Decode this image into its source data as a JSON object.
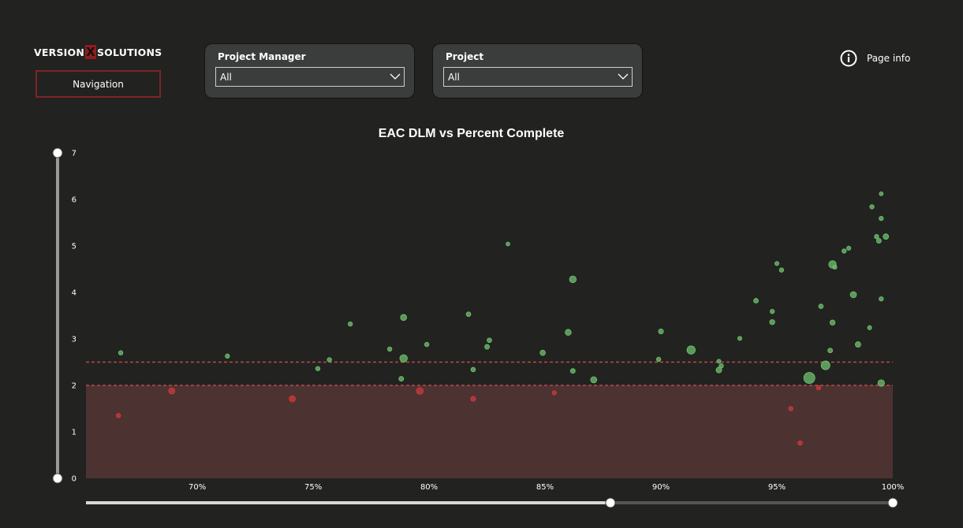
{
  "logo": {
    "left": "VERSION",
    "mark": "X",
    "right": "SOLUTIONS"
  },
  "navigation": {
    "label": "Navigation"
  },
  "filters": [
    {
      "title": "Project Manager",
      "value": "All"
    },
    {
      "title": "Project",
      "value": "All"
    }
  ],
  "page_info": {
    "label": "Page info"
  },
  "colors": {
    "above": "#6fc16f",
    "below": "#cf3a3a",
    "band": "#4d3232",
    "line": "#b84a4a"
  },
  "chart_data": {
    "type": "scatter",
    "title": "EAC DLM vs Percent Complete",
    "xlabel": "",
    "ylabel": "",
    "x_tick_labels": [
      "70%",
      "75%",
      "80%",
      "85%",
      "90%",
      "95%",
      "100%"
    ],
    "x_ticks": [
      70,
      75,
      80,
      85,
      90,
      95,
      100
    ],
    "y_ticks": [
      0,
      1,
      2,
      3,
      4,
      5,
      6,
      7
    ],
    "xlim": [
      65.2,
      100
    ],
    "ylim": [
      0,
      7
    ],
    "reference_lines": [
      2.0,
      2.5
    ],
    "threshold": 2.0,
    "shaded_range": [
      0,
      2.0
    ],
    "points": [
      {
        "x": 66.7,
        "y": 2.7,
        "size": 1
      },
      {
        "x": 71.3,
        "y": 2.63,
        "size": 1
      },
      {
        "x": 75.2,
        "y": 2.36,
        "size": 1
      },
      {
        "x": 75.7,
        "y": 2.55,
        "size": 1
      },
      {
        "x": 76.6,
        "y": 3.32,
        "size": 1
      },
      {
        "x": 78.3,
        "y": 2.78,
        "size": 1
      },
      {
        "x": 78.8,
        "y": 2.14,
        "size": 1.2
      },
      {
        "x": 78.9,
        "y": 3.46,
        "size": 2
      },
      {
        "x": 78.9,
        "y": 2.58,
        "size": 3
      },
      {
        "x": 79.9,
        "y": 2.88,
        "size": 1
      },
      {
        "x": 81.7,
        "y": 3.53,
        "size": 1.1
      },
      {
        "x": 81.9,
        "y": 2.34,
        "size": 1.1
      },
      {
        "x": 82.5,
        "y": 2.83,
        "size": 1.2
      },
      {
        "x": 82.6,
        "y": 2.97,
        "size": 1.1
      },
      {
        "x": 83.4,
        "y": 5.04,
        "size": 0.8
      },
      {
        "x": 84.9,
        "y": 2.7,
        "size": 1.5
      },
      {
        "x": 86.0,
        "y": 3.14,
        "size": 1.9
      },
      {
        "x": 86.2,
        "y": 4.28,
        "size": 2.4
      },
      {
        "x": 86.2,
        "y": 2.31,
        "size": 1.2
      },
      {
        "x": 87.1,
        "y": 2.12,
        "size": 2
      },
      {
        "x": 89.9,
        "y": 2.56,
        "size": 1
      },
      {
        "x": 90.0,
        "y": 3.16,
        "size": 1.3
      },
      {
        "x": 91.3,
        "y": 2.76,
        "size": 3.6
      },
      {
        "x": 92.5,
        "y": 2.33,
        "size": 1.7
      },
      {
        "x": 92.6,
        "y": 2.42,
        "size": 1
      },
      {
        "x": 92.5,
        "y": 2.52,
        "size": 0.8
      },
      {
        "x": 93.4,
        "y": 3.01,
        "size": 0.9
      },
      {
        "x": 94.1,
        "y": 3.82,
        "size": 1.2
      },
      {
        "x": 94.8,
        "y": 3.59,
        "size": 1
      },
      {
        "x": 94.8,
        "y": 3.36,
        "size": 1.4
      },
      {
        "x": 95.0,
        "y": 4.62,
        "size": 0.9
      },
      {
        "x": 95.2,
        "y": 4.48,
        "size": 1
      },
      {
        "x": 96.4,
        "y": 2.16,
        "size": 6.5
      },
      {
        "x": 96.9,
        "y": 3.7,
        "size": 1.1
      },
      {
        "x": 97.1,
        "y": 2.43,
        "size": 4
      },
      {
        "x": 97.3,
        "y": 2.75,
        "size": 1.2
      },
      {
        "x": 97.4,
        "y": 3.35,
        "size": 1.4
      },
      {
        "x": 97.4,
        "y": 4.6,
        "size": 3
      },
      {
        "x": 97.5,
        "y": 4.54,
        "size": 0.9
      },
      {
        "x": 97.9,
        "y": 4.89,
        "size": 1
      },
      {
        "x": 98.1,
        "y": 4.95,
        "size": 0.9
      },
      {
        "x": 98.3,
        "y": 3.95,
        "size": 2
      },
      {
        "x": 98.5,
        "y": 2.88,
        "size": 1.6
      },
      {
        "x": 99.0,
        "y": 3.24,
        "size": 0.9
      },
      {
        "x": 99.1,
        "y": 5.84,
        "size": 1
      },
      {
        "x": 99.3,
        "y": 5.2,
        "size": 1
      },
      {
        "x": 99.4,
        "y": 5.11,
        "size": 1.2
      },
      {
        "x": 99.5,
        "y": 3.86,
        "size": 1
      },
      {
        "x": 99.5,
        "y": 5.59,
        "size": 1
      },
      {
        "x": 99.5,
        "y": 2.05,
        "size": 2.3
      },
      {
        "x": 99.5,
        "y": 6.12,
        "size": 0.8
      },
      {
        "x": 99.7,
        "y": 5.2,
        "size": 1.6
      },
      {
        "x": 66.6,
        "y": 1.35,
        "size": 1
      },
      {
        "x": 68.9,
        "y": 1.88,
        "size": 2
      },
      {
        "x": 74.1,
        "y": 1.71,
        "size": 2
      },
      {
        "x": 79.6,
        "y": 1.88,
        "size": 2.4
      },
      {
        "x": 81.9,
        "y": 1.71,
        "size": 1.3
      },
      {
        "x": 85.4,
        "y": 1.84,
        "size": 0.9
      },
      {
        "x": 95.6,
        "y": 1.5,
        "size": 1
      },
      {
        "x": 96.0,
        "y": 0.76,
        "size": 1
      },
      {
        "x": 96.8,
        "y": 1.95,
        "size": 1
      }
    ]
  },
  "x_slider": {
    "selected_range_pct": [
      0,
      65
    ]
  },
  "y_slider": {
    "selected_range": [
      0,
      7
    ]
  }
}
